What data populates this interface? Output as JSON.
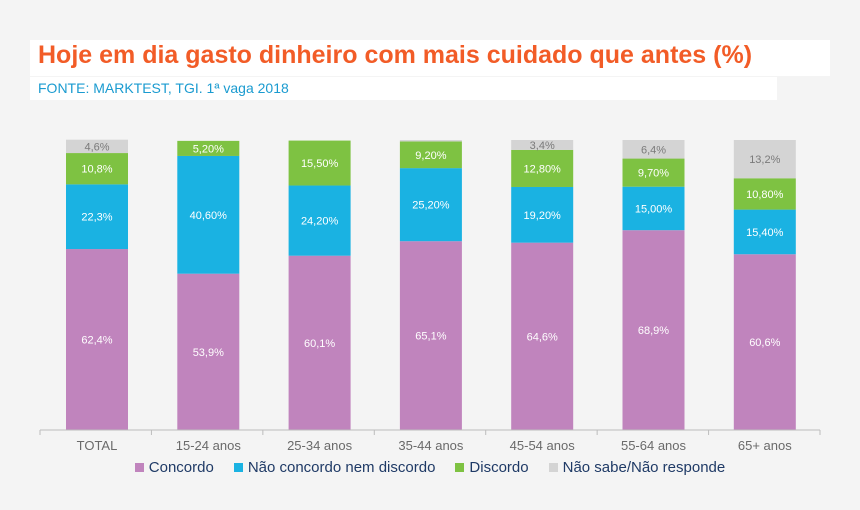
{
  "header": {
    "title": "Hoje em dia gasto dinheiro com mais cuidado que antes (%)",
    "subtitle": "FONTE: MARKTEST, TGI. 1ª vaga 2018"
  },
  "chart_data": {
    "type": "bar",
    "stacked": true,
    "categories": [
      "TOTAL",
      "15-24 anos",
      "25-34 anos",
      "35-44 anos",
      "45-54 anos",
      "55-64 anos",
      "65+ anos"
    ],
    "ylim": [
      0,
      100
    ],
    "grid": false,
    "legend_position": "bottom",
    "series": [
      {
        "name": "Concordo",
        "color": "#c084bd",
        "values": [
          62.4,
          53.9,
          60.1,
          65.1,
          64.6,
          68.9,
          60.6
        ],
        "labels": [
          "62,4%",
          "53,9%",
          "60,1%",
          "65,1%",
          "64,6%",
          "68,9%",
          "60,6%"
        ]
      },
      {
        "name": "Não concordo nem discordo",
        "color": "#1ab2e2",
        "values": [
          22.3,
          40.6,
          24.2,
          25.2,
          19.2,
          15.0,
          15.4
        ],
        "labels": [
          "22,3%",
          "40,60%",
          "24,20%",
          "25,20%",
          "19,20%",
          "15,00%",
          "15,40%"
        ]
      },
      {
        "name": "Discordo",
        "color": "#7ec242",
        "values": [
          10.8,
          5.2,
          15.5,
          9.2,
          12.8,
          9.7,
          10.8
        ],
        "labels": [
          "10,8%",
          "5,20%",
          "15,50%",
          "9,20%",
          "12,80%",
          "9,70%",
          "10,80%"
        ]
      },
      {
        "name": "Não sabe/Não responde",
        "color": "#d4d4d4",
        "values": [
          4.6,
          0,
          0,
          0.5,
          3.4,
          6.4,
          13.2
        ],
        "labels": [
          "4,6%",
          "",
          "",
          "",
          "3,4%",
          "6,4%",
          "13,2%"
        ]
      }
    ]
  }
}
